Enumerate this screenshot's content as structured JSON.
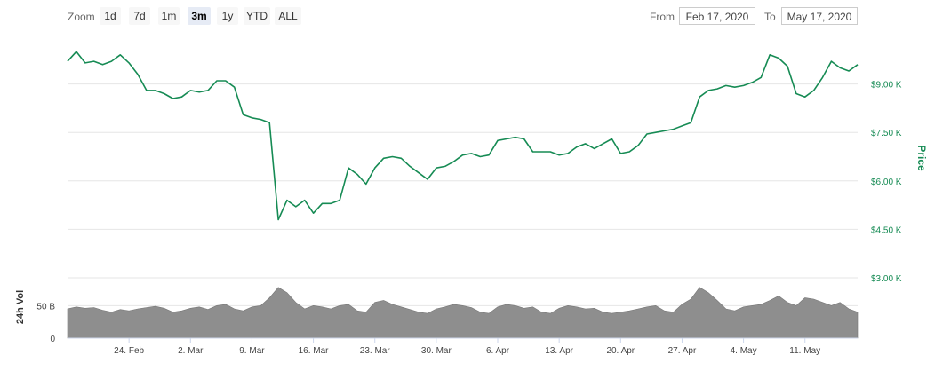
{
  "toolbar": {
    "zoom_label": "Zoom",
    "buttons": [
      "1d",
      "7d",
      "1m",
      "3m",
      "1y",
      "YTD",
      "ALL"
    ],
    "active": "3m",
    "from_label": "From",
    "from_value": "Feb 17, 2020",
    "to_label": "To",
    "to_value": "May 17, 2020"
  },
  "colors": {
    "price_line": "#168b54",
    "axis_label": "#168b54",
    "volume_fill": "#8e8e8e",
    "grid": "#e6e6e6"
  },
  "chart_data": [
    {
      "type": "line",
      "ylabel": "Price",
      "ylim": [
        3000,
        10500
      ],
      "yticks": [
        3000,
        4500,
        6000,
        7500,
        9000
      ],
      "ytick_labels": [
        "$3.00 K",
        "$4.50 K",
        "$6.00 K",
        "$7.50 K",
        "$9.00 K"
      ],
      "grid": true,
      "xlim": [
        "2020-02-17",
        "2020-05-17"
      ],
      "xticks": [
        "2020-02-24",
        "2020-03-02",
        "2020-03-09",
        "2020-03-16",
        "2020-03-23",
        "2020-03-30",
        "2020-04-06",
        "2020-04-13",
        "2020-04-20",
        "2020-04-27",
        "2020-05-04",
        "2020-05-11"
      ],
      "xtick_labels": [
        "24. Feb",
        "2. Mar",
        "9. Mar",
        "16. Mar",
        "23. Mar",
        "30. Mar",
        "6. Apr",
        "13. Apr",
        "20. Apr",
        "27. Apr",
        "4. May",
        "11. May"
      ],
      "series": [
        {
          "x": [
            "2020-02-17",
            "2020-02-18",
            "2020-02-19",
            "2020-02-20",
            "2020-02-21",
            "2020-02-22",
            "2020-02-23",
            "2020-02-24",
            "2020-02-25",
            "2020-02-26",
            "2020-02-27",
            "2020-02-28",
            "2020-02-29",
            "2020-03-01",
            "2020-03-02",
            "2020-03-03",
            "2020-03-04",
            "2020-03-05",
            "2020-03-06",
            "2020-03-07",
            "2020-03-08",
            "2020-03-09",
            "2020-03-10",
            "2020-03-11",
            "2020-03-12",
            "2020-03-13",
            "2020-03-14",
            "2020-03-15",
            "2020-03-16",
            "2020-03-17",
            "2020-03-18",
            "2020-03-19",
            "2020-03-20",
            "2020-03-21",
            "2020-03-22",
            "2020-03-23",
            "2020-03-24",
            "2020-03-25",
            "2020-03-26",
            "2020-03-27",
            "2020-03-28",
            "2020-03-29",
            "2020-03-30",
            "2020-03-31",
            "2020-04-01",
            "2020-04-02",
            "2020-04-03",
            "2020-04-04",
            "2020-04-05",
            "2020-04-06",
            "2020-04-07",
            "2020-04-08",
            "2020-04-09",
            "2020-04-10",
            "2020-04-11",
            "2020-04-12",
            "2020-04-13",
            "2020-04-14",
            "2020-04-15",
            "2020-04-16",
            "2020-04-17",
            "2020-04-18",
            "2020-04-19",
            "2020-04-20",
            "2020-04-21",
            "2020-04-22",
            "2020-04-23",
            "2020-04-24",
            "2020-04-25",
            "2020-04-26",
            "2020-04-27",
            "2020-04-28",
            "2020-04-29",
            "2020-04-30",
            "2020-05-01",
            "2020-05-02",
            "2020-05-03",
            "2020-05-04",
            "2020-05-05",
            "2020-05-06",
            "2020-05-07",
            "2020-05-08",
            "2020-05-09",
            "2020-05-10",
            "2020-05-11",
            "2020-05-12",
            "2020-05-13",
            "2020-05-14",
            "2020-05-15",
            "2020-05-16",
            "2020-05-17"
          ],
          "values": [
            9700,
            10000,
            9650,
            9700,
            9600,
            9700,
            9900,
            9650,
            9300,
            8800,
            8800,
            8700,
            8550,
            8600,
            8800,
            8750,
            8800,
            9100,
            9100,
            8900,
            8050,
            7950,
            7900,
            7800,
            4800,
            5400,
            5200,
            5400,
            5000,
            5300,
            5300,
            5400,
            6400,
            6200,
            5900,
            6400,
            6700,
            6750,
            6700,
            6450,
            6250,
            6050,
            6400,
            6450,
            6600,
            6800,
            6850,
            6750,
            6800,
            7250,
            7300,
            7350,
            7300,
            6900,
            6900,
            6900,
            6800,
            6850,
            7050,
            7150,
            7000,
            7150,
            7300,
            6850,
            6900,
            7100,
            7450,
            7500,
            7550,
            7600,
            7700,
            7800,
            8600,
            8800,
            8850,
            8950,
            8900,
            8950,
            9050,
            9200,
            9900,
            9800,
            9550,
            8700,
            8600,
            8800,
            9200,
            9700,
            9500,
            9400,
            9600
          ]
        }
      ]
    },
    {
      "type": "area",
      "ylabel": "24h Vol",
      "ylim": [
        0,
        90
      ],
      "yticks": [
        0,
        50
      ],
      "ytick_labels": [
        "0",
        "50 B"
      ],
      "series": [
        {
          "x": [
            "2020-02-17",
            "2020-02-18",
            "2020-02-19",
            "2020-02-20",
            "2020-02-21",
            "2020-02-22",
            "2020-02-23",
            "2020-02-24",
            "2020-02-25",
            "2020-02-26",
            "2020-02-27",
            "2020-02-28",
            "2020-02-29",
            "2020-03-01",
            "2020-03-02",
            "2020-03-03",
            "2020-03-04",
            "2020-03-05",
            "2020-03-06",
            "2020-03-07",
            "2020-03-08",
            "2020-03-09",
            "2020-03-10",
            "2020-03-11",
            "2020-03-12",
            "2020-03-13",
            "2020-03-14",
            "2020-03-15",
            "2020-03-16",
            "2020-03-17",
            "2020-03-18",
            "2020-03-19",
            "2020-03-20",
            "2020-03-21",
            "2020-03-22",
            "2020-03-23",
            "2020-03-24",
            "2020-03-25",
            "2020-03-26",
            "2020-03-27",
            "2020-03-28",
            "2020-03-29",
            "2020-03-30",
            "2020-03-31",
            "2020-04-01",
            "2020-04-02",
            "2020-04-03",
            "2020-04-04",
            "2020-04-05",
            "2020-04-06",
            "2020-04-07",
            "2020-04-08",
            "2020-04-09",
            "2020-04-10",
            "2020-04-11",
            "2020-04-12",
            "2020-04-13",
            "2020-04-14",
            "2020-04-15",
            "2020-04-16",
            "2020-04-17",
            "2020-04-18",
            "2020-04-19",
            "2020-04-20",
            "2020-04-21",
            "2020-04-22",
            "2020-04-23",
            "2020-04-24",
            "2020-04-25",
            "2020-04-26",
            "2020-04-27",
            "2020-04-28",
            "2020-04-29",
            "2020-04-30",
            "2020-05-01",
            "2020-05-02",
            "2020-05-03",
            "2020-05-04",
            "2020-05-05",
            "2020-05-06",
            "2020-05-07",
            "2020-05-08",
            "2020-05-09",
            "2020-05-10",
            "2020-05-11",
            "2020-05-12",
            "2020-05-13",
            "2020-05-14",
            "2020-05-15",
            "2020-05-16",
            "2020-05-17"
          ],
          "values": [
            45,
            48,
            46,
            47,
            43,
            40,
            44,
            42,
            45,
            47,
            49,
            46,
            40,
            42,
            46,
            48,
            44,
            50,
            52,
            45,
            42,
            48,
            50,
            62,
            78,
            70,
            55,
            45,
            50,
            48,
            45,
            50,
            52,
            42,
            40,
            55,
            58,
            52,
            48,
            44,
            40,
            38,
            45,
            48,
            52,
            50,
            47,
            40,
            38,
            48,
            52,
            50,
            46,
            48,
            40,
            38,
            46,
            50,
            48,
            45,
            46,
            40,
            38,
            40,
            42,
            45,
            48,
            50,
            42,
            40,
            52,
            60,
            78,
            70,
            58,
            45,
            42,
            48,
            50,
            52,
            58,
            65,
            55,
            50,
            62,
            60,
            55,
            50,
            55,
            45,
            40
          ]
        }
      ]
    }
  ]
}
